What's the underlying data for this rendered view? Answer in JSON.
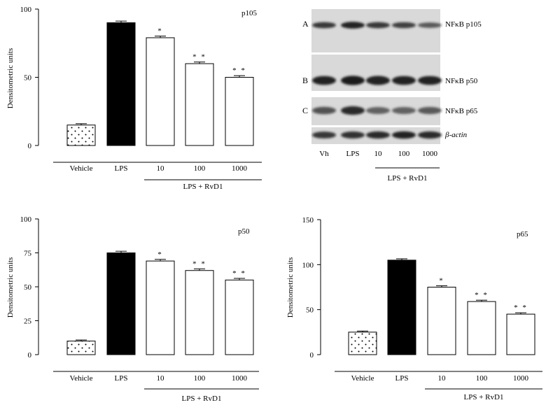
{
  "chart_data": [
    {
      "type": "bar",
      "panel_title": "p105",
      "ylabel": "Densitometric units",
      "ylim": [
        0,
        100
      ],
      "yticks": [
        0,
        50,
        100
      ],
      "categories": [
        "Vehicle",
        "LPS",
        "10",
        "100",
        "1000"
      ],
      "group_label": "LPS + RvD1",
      "values": [
        15,
        90,
        79,
        60,
        50
      ],
      "errors": [
        1.0,
        1.2,
        1.2,
        1.2,
        1.2
      ],
      "significance": [
        "",
        "",
        "*",
        "**",
        "**"
      ],
      "fills": [
        "dotted",
        "black",
        "white",
        "white",
        "white"
      ]
    },
    {
      "type": "bar",
      "panel_title": "p50",
      "ylabel": "Densitometric units",
      "ylim": [
        0,
        100
      ],
      "yticks": [
        0,
        25,
        50,
        75,
        100
      ],
      "categories": [
        "Vehicle",
        "LPS",
        "10",
        "100",
        "1000"
      ],
      "group_label": "LPS + RvD1",
      "values": [
        10,
        75,
        69,
        62,
        55
      ],
      "errors": [
        0.8,
        1.2,
        1.2,
        1.2,
        1.2
      ],
      "significance": [
        "",
        "",
        "*",
        "**",
        "**"
      ],
      "fills": [
        "dotted",
        "black",
        "white",
        "white",
        "white"
      ]
    },
    {
      "type": "bar",
      "panel_title": "p65",
      "ylabel": "Densitometric units",
      "ylim": [
        0,
        150
      ],
      "yticks": [
        0,
        50,
        100,
        150
      ],
      "categories": [
        "Vehicle",
        "LPS",
        "10",
        "100",
        "1000"
      ],
      "group_label": "LPS + RvD1",
      "values": [
        25,
        105,
        75,
        59,
        45
      ],
      "errors": [
        1.2,
        1.5,
        1.5,
        1.5,
        1.5
      ],
      "significance": [
        "",
        "",
        "*",
        "**",
        "**"
      ],
      "fills": [
        "dotted",
        "black",
        "white",
        "white",
        "white"
      ]
    }
  ],
  "blot": {
    "row_letters": [
      "A",
      "B",
      "C"
    ],
    "band_labels": [
      "NFκB p105",
      "NFκB p50",
      "NFκB p65",
      "β-actin"
    ],
    "lanes": [
      "Vh",
      "LPS",
      "10",
      "100",
      "1000"
    ],
    "group_label": "LPS + RvD1",
    "band_intensity": {
      "p105": [
        0.75,
        0.95,
        0.75,
        0.7,
        0.5
      ],
      "p50": [
        0.9,
        1.0,
        0.95,
        0.9,
        0.9
      ],
      "p65": [
        0.55,
        0.85,
        0.45,
        0.45,
        0.5
      ],
      "actin": [
        0.75,
        0.8,
        0.85,
        0.9,
        0.85
      ]
    }
  },
  "colors": {
    "bar_black": "#000000",
    "bar_white": "#ffffff",
    "axis": "#000000",
    "blot_background": "#d9d9d9",
    "band": "#1a1a1a"
  }
}
